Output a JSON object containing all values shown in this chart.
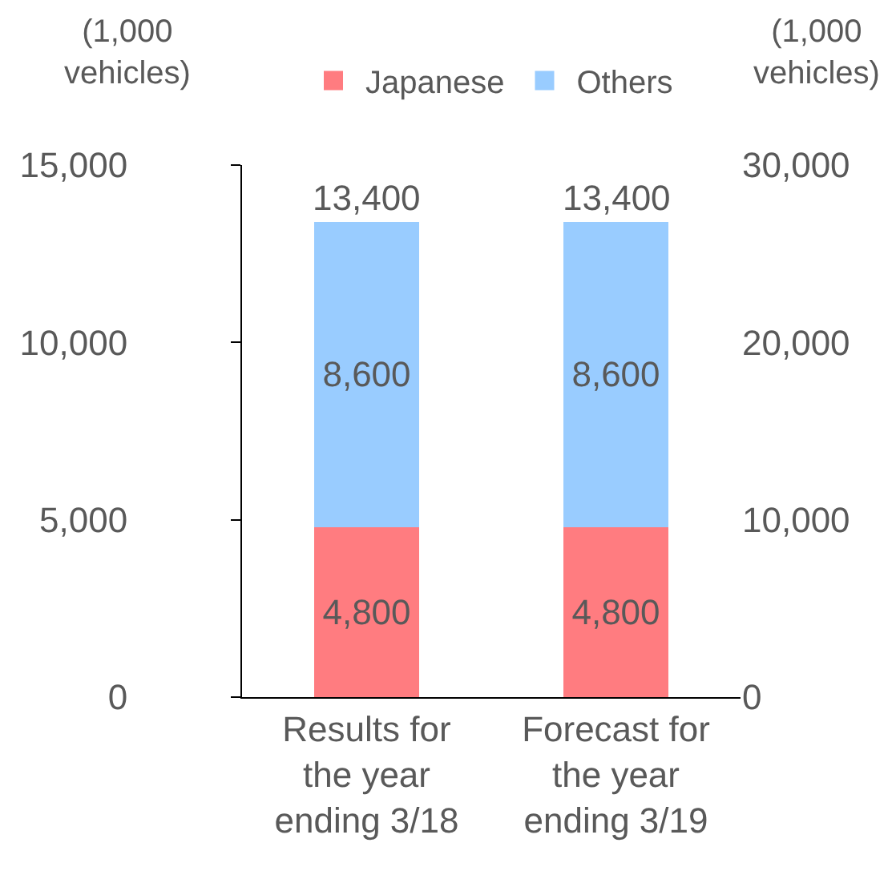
{
  "chart_data": {
    "type": "bar",
    "stacked": true,
    "ylabel": "(1,000 vehicles)",
    "y2label": "(1,000 vehicles)",
    "categories": [
      "Results for the year ending 3/18",
      "Forecast for the year ending 3/19"
    ],
    "series": [
      {
        "name": "Japanese",
        "color": "#ff7c80",
        "values": [
          4800,
          4800
        ],
        "value_labels": [
          "4,800",
          "4,800"
        ]
      },
      {
        "name": "Others",
        "color": "#99ccff",
        "values": [
          8600,
          8600
        ],
        "value_labels": [
          "8,600",
          "8,600"
        ]
      }
    ],
    "ylim": [
      0,
      15000
    ],
    "yticks": [
      {
        "value": 0,
        "label": "0"
      },
      {
        "value": 5000,
        "label": "5,000"
      },
      {
        "value": 10000,
        "label": "10,000"
      },
      {
        "value": 15000,
        "label": "15,000"
      }
    ],
    "y2lim": [
      0,
      30000
    ],
    "y2ticks": [
      {
        "value": 0,
        "label": "0"
      },
      {
        "value": 10000,
        "label": "10,000"
      },
      {
        "value": 20000,
        "label": "20,000"
      },
      {
        "value": 30000,
        "label": "30,000"
      }
    ],
    "totals": [
      "13,400",
      "13,400"
    ],
    "legend": "top"
  }
}
